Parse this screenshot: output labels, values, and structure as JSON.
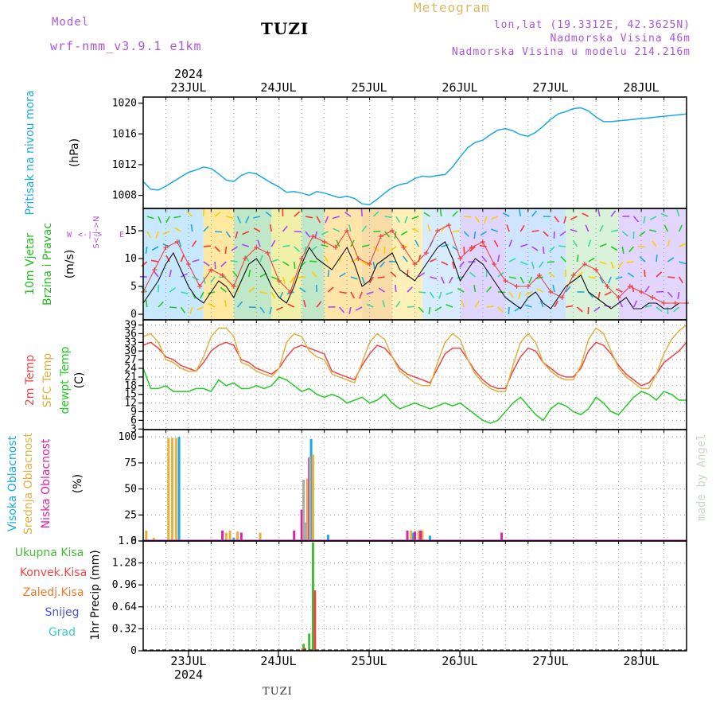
{
  "header": {
    "model_label": "Model",
    "model_name": "wrf-nmm_v3.9.1 e1km",
    "station": "TUZI",
    "product": "Meteogram",
    "lonlat": "lon,lat (19.3312E, 42.3625N)",
    "elevation": "Nadmorska Visina 46m",
    "model_elevation": "Nadmorska Visina u modelu 214.216m",
    "footer_station": "TUZI",
    "watermark": "made by Angel"
  },
  "colors": {
    "pressure": "#19a9e6",
    "temp2m": "#ee4444",
    "sfc": "#e0b040",
    "dewpt": "#22cc22",
    "high_cloud": "#19a9e6",
    "mid_cloud": "#e6b040",
    "low_cloud": "#dd22aa",
    "total_precip": "#44bb33",
    "conv_precip": "#ee4444",
    "strat_precip": "#f07a2a",
    "snow": "#5050dd",
    "graupel": "#33cccc",
    "header_purple": "#aa55dd",
    "header_gold": "#e0b860"
  },
  "axis": {
    "year": "2024",
    "dates": [
      "23JUL",
      "24JUL",
      "25JUL",
      "26JUL",
      "27JUL",
      "28JUL"
    ]
  },
  "chart_data": [
    {
      "type": "line",
      "panel": "pressure",
      "labels": [
        "Pritisak na nivou mora",
        "(hPa)"
      ],
      "y_ticks": [
        1008,
        1012,
        1016,
        1020
      ],
      "ylim": [
        1006.3,
        1020.8
      ],
      "x_range_hours": [
        0,
        144
      ],
      "series": [
        {
          "color": "#19a9e6",
          "x": [
            0,
            2,
            4,
            6,
            8,
            10,
            12,
            14,
            16,
            18,
            20,
            22,
            24,
            26,
            28,
            30,
            32,
            34,
            36,
            38,
            40,
            42,
            44,
            46,
            48,
            50,
            52,
            54,
            56,
            58,
            60,
            62,
            64,
            66,
            68,
            70,
            72,
            74,
            76,
            78,
            80,
            82,
            84,
            86,
            88,
            90,
            92,
            94,
            96,
            98,
            100,
            102,
            104,
            106,
            108,
            110,
            112,
            114,
            116,
            118,
            120,
            122,
            124,
            126,
            128,
            130,
            132,
            134,
            136,
            138,
            140,
            142,
            144
          ],
          "y": [
            1009.8,
            1008.8,
            1008.7,
            1009.2,
            1009.8,
            1010.4,
            1011.0,
            1011.3,
            1011.7,
            1011.5,
            1010.8,
            1010.0,
            1009.8,
            1010.6,
            1011.0,
            1010.8,
            1010.2,
            1009.6,
            1009.1,
            1008.4,
            1008.5,
            1008.3,
            1008.0,
            1008.5,
            1008.3,
            1008.0,
            1007.7,
            1007.9,
            1007.6,
            1006.9,
            1006.8,
            1007.5,
            1008.3,
            1009.0,
            1009.4,
            1009.6,
            1010.2,
            1010.5,
            1010.4,
            1010.6,
            1010.7,
            1011.7,
            1013.0,
            1014.2,
            1014.9,
            1015.2,
            1015.9,
            1016.5,
            1016.7,
            1016.4,
            1015.9,
            1015.7,
            1016.2,
            1017.0,
            1017.9,
            1018.6,
            1018.9,
            1019.3,
            1019.4,
            1019.0,
            1018.2,
            1017.6,
            1017.6,
            1017.7,
            1017.8,
            1017.9,
            1018.0,
            1018.1,
            1018.2,
            1018.3,
            1018.4,
            1018.5,
            1018.6
          ]
        }
      ]
    },
    {
      "type": "line",
      "panel": "wind",
      "labels": [
        "10m Vjetar",
        "Brzina i Pravac",
        "(m/s)"
      ],
      "y_ticks": [
        0,
        5,
        10,
        15
      ],
      "ylim": [
        -1,
        19
      ],
      "x_range_hours": [
        0,
        144
      ],
      "compass": [
        "W",
        "E",
        "N",
        "S"
      ],
      "series": [
        {
          "name": "wind speed",
          "color": "#111111",
          "x": [
            0,
            2,
            4,
            6,
            8,
            10,
            12,
            14,
            16,
            18,
            20,
            22,
            24,
            26,
            28,
            30,
            32,
            34,
            36,
            38,
            40,
            42,
            44,
            46,
            48,
            50,
            52,
            54,
            56,
            58,
            60,
            62,
            64,
            66,
            68,
            70,
            72,
            74,
            76,
            78,
            80,
            82,
            84,
            86,
            88,
            90,
            92,
            94,
            96,
            98,
            100,
            102,
            104,
            106,
            108,
            110,
            112,
            114,
            116,
            118,
            120,
            122,
            124,
            126,
            128,
            130,
            132,
            134,
            136,
            138,
            140,
            142,
            144
          ],
          "y": [
            2,
            4,
            6,
            9,
            11,
            8,
            5,
            3,
            2,
            4,
            6,
            5,
            3,
            6,
            9,
            10,
            8,
            5,
            3,
            2,
            5,
            9,
            12,
            10,
            9,
            8,
            10,
            12,
            9,
            5,
            6,
            9,
            10,
            11,
            8,
            7,
            6,
            8,
            10,
            12,
            13,
            10,
            6,
            8,
            10,
            9,
            7,
            5,
            3,
            2,
            1,
            3,
            4,
            2,
            1,
            3,
            5,
            6,
            7,
            4,
            3,
            2,
            1,
            2,
            3,
            1,
            1,
            2,
            2,
            1,
            1,
            2,
            2
          ]
        },
        {
          "name": "gust",
          "color": "#ee4444",
          "x": [
            0,
            3,
            6,
            9,
            12,
            15,
            18,
            21,
            24,
            27,
            30,
            33,
            36,
            39,
            42,
            45,
            48,
            51,
            54,
            57,
            60,
            63,
            66,
            69,
            72,
            75,
            78,
            81,
            84,
            87,
            90,
            93,
            96,
            99,
            102,
            105,
            108,
            111,
            114,
            117,
            120,
            123,
            126,
            129,
            132,
            135,
            138,
            141,
            144
          ],
          "y": [
            4,
            8,
            12,
            13,
            9,
            5,
            8,
            7,
            5,
            10,
            12,
            11,
            6,
            4,
            10,
            14,
            13,
            12,
            15,
            10,
            9,
            14,
            15,
            12,
            9,
            11,
            15,
            16,
            10,
            12,
            13,
            9,
            6,
            5,
            5,
            7,
            4,
            3,
            7,
            9,
            8,
            5,
            3,
            5,
            4,
            3,
            2,
            2,
            2
          ]
        }
      ]
    },
    {
      "type": "line",
      "panel": "temperature",
      "labels": [
        "2m Temp",
        "SFC Temp",
        "dewpt Temp",
        "(C)"
      ],
      "y_ticks": [
        3,
        6,
        9,
        12,
        15,
        18,
        21,
        24,
        27,
        30,
        33,
        36,
        39
      ],
      "ylim": [
        2.8,
        40.8
      ],
      "x_range_hours": [
        0,
        144
      ],
      "series": [
        {
          "name": "2m Temp",
          "color": "#ee4444",
          "x": [
            0,
            2,
            4,
            6,
            8,
            10,
            12,
            14,
            16,
            18,
            20,
            22,
            24,
            26,
            28,
            30,
            32,
            34,
            36,
            38,
            40,
            42,
            44,
            46,
            48,
            50,
            52,
            54,
            56,
            58,
            60,
            62,
            64,
            66,
            68,
            70,
            72,
            74,
            76,
            78,
            80,
            82,
            84,
            86,
            88,
            90,
            92,
            94,
            96,
            98,
            100,
            102,
            104,
            106,
            108,
            110,
            112,
            114,
            116,
            118,
            120,
            122,
            124,
            126,
            128,
            130,
            132,
            134,
            136,
            138,
            140,
            142,
            144
          ],
          "y": [
            32,
            33,
            31,
            28,
            27,
            25,
            24,
            23,
            26,
            30,
            32,
            33,
            32,
            27,
            26,
            24,
            23,
            22,
            24,
            28,
            31,
            32,
            31,
            30,
            29,
            23,
            22,
            21,
            20,
            25,
            29,
            32,
            31,
            28,
            24,
            22,
            21,
            20,
            19,
            24,
            29,
            31,
            31,
            27,
            23,
            20,
            18,
            17,
            17,
            23,
            28,
            31,
            30,
            26,
            24,
            22,
            21,
            21,
            24,
            30,
            33,
            32,
            29,
            25,
            22,
            20,
            18,
            19,
            22,
            26,
            28,
            30,
            33
          ]
        },
        {
          "name": "SFC Temp",
          "color": "#e0b040",
          "x": [
            0,
            2,
            4,
            6,
            8,
            10,
            12,
            14,
            16,
            18,
            20,
            22,
            24,
            26,
            28,
            30,
            32,
            34,
            36,
            38,
            40,
            42,
            44,
            46,
            48,
            50,
            52,
            54,
            56,
            58,
            60,
            62,
            64,
            66,
            68,
            70,
            72,
            74,
            76,
            78,
            80,
            82,
            84,
            86,
            88,
            90,
            92,
            94,
            96,
            98,
            100,
            102,
            104,
            106,
            108,
            110,
            112,
            114,
            116,
            118,
            120,
            122,
            124,
            126,
            128,
            130,
            132,
            134,
            136,
            138,
            140,
            142,
            144
          ],
          "y": [
            35,
            36,
            33,
            27,
            26,
            24,
            23,
            23,
            28,
            35,
            38,
            38,
            35,
            26,
            25,
            23,
            22,
            21,
            24,
            33,
            36,
            35,
            30,
            28,
            27,
            22,
            21,
            20,
            19,
            26,
            33,
            36,
            34,
            28,
            23,
            21,
            19,
            18,
            18,
            26,
            33,
            36,
            34,
            27,
            22,
            19,
            17,
            16,
            16,
            25,
            33,
            36,
            33,
            26,
            23,
            21,
            20,
            20,
            25,
            34,
            38,
            36,
            30,
            24,
            21,
            19,
            17,
            17,
            22,
            29,
            34,
            37,
            39
          ]
        },
        {
          "name": "dewpt Temp",
          "color": "#22cc22",
          "x": [
            0,
            2,
            4,
            6,
            8,
            10,
            12,
            14,
            16,
            18,
            20,
            22,
            24,
            26,
            28,
            30,
            32,
            34,
            36,
            38,
            40,
            42,
            44,
            46,
            48,
            50,
            52,
            54,
            56,
            58,
            60,
            62,
            64,
            66,
            68,
            70,
            72,
            74,
            76,
            78,
            80,
            82,
            84,
            86,
            88,
            90,
            92,
            94,
            96,
            98,
            100,
            102,
            104,
            106,
            108,
            110,
            112,
            114,
            116,
            118,
            120,
            122,
            124,
            126,
            128,
            130,
            132,
            134,
            136,
            138,
            140,
            142,
            144
          ],
          "y": [
            24,
            17,
            17,
            18,
            16,
            16,
            16,
            17,
            17,
            16,
            20,
            18,
            19,
            17,
            17,
            18,
            17,
            18,
            21,
            20,
            18,
            16,
            17,
            15,
            14,
            15,
            14,
            12,
            13,
            14,
            12,
            13,
            15,
            12,
            10,
            11,
            12,
            11,
            10,
            11,
            12,
            11,
            12,
            10,
            8,
            6,
            5,
            6,
            9,
            12,
            14,
            11,
            8,
            6,
            10,
            12,
            11,
            9,
            8,
            10,
            14,
            12,
            9,
            8,
            11,
            14,
            16,
            15,
            13,
            16,
            15,
            13,
            13
          ]
        }
      ]
    },
    {
      "type": "bar",
      "panel": "clouds",
      "labels": [
        "Visoka Oblacnost",
        "Srednja Oblacnost",
        "Niska Oblacnost",
        "(%)"
      ],
      "y_ticks": [
        0,
        25,
        50,
        75,
        100
      ],
      "ylim": [
        0,
        107
      ],
      "x_range_hours": [
        0,
        144
      ],
      "series": [
        {
          "name": "Visoka Oblacnost",
          "color": "#19a9e6",
          "x": [
            9.5,
            24,
            44.5,
            49,
            71.5,
            76
          ],
          "y": [
            100,
            3,
            98,
            6,
            8,
            5
          ]
        },
        {
          "name": "Srednja Oblacnost",
          "color": "#e6b040",
          "x": [
            0.8,
            2.8,
            6.7,
            7.7,
            8.7,
            22,
            23,
            25,
            31,
            43.5,
            45,
            71,
            73,
            74
          ],
          "y": [
            10,
            3,
            99,
            99,
            99,
            8,
            10,
            9,
            8,
            60,
            83,
            10,
            10,
            10
          ]
        },
        {
          "name": "Niska Oblacnost",
          "color": "#dd22aa",
          "x": [
            21,
            26,
            40,
            42,
            44,
            70,
            72,
            73.5,
            95
          ],
          "y": [
            10,
            8,
            10,
            30,
            80,
            10,
            9,
            10,
            8
          ]
        },
        {
          "name": "grey",
          "color": "#aaaaaa",
          "x": [
            42.5,
            43,
            44.2
          ],
          "y": [
            59,
            18,
            81
          ]
        }
      ]
    },
    {
      "type": "bar",
      "panel": "precipitation",
      "labels": [
        "Ukupna Kisa",
        "Konvek.Kisa",
        "Zaledj.Kisa",
        "Snijeg",
        "Grad",
        "1hr Precip (mm)"
      ],
      "y_ticks": [
        0,
        0.32,
        0.64,
        0.96,
        1.28,
        1.6
      ],
      "y_tick_labels": [
        "0",
        "0.32",
        "0.64",
        "0.96",
        "1.28",
        "1.6"
      ],
      "ylim": [
        0,
        1.6
      ],
      "x_range_hours": [
        0,
        144
      ],
      "series": [
        {
          "name": "Ukupna Kisa",
          "color": "#44bb33",
          "x": [
            42.5,
            44,
            45
          ],
          "y": [
            0.1,
            0.25,
            1.58
          ]
        },
        {
          "name": "Konvek.Kisa",
          "color": "#ee4444",
          "x": [
            42.9,
            45.5
          ],
          "y": [
            0.04,
            0.88
          ]
        },
        {
          "name": "Zaledj.Kisa",
          "color": "#f07a2a",
          "x": [
            42.2
          ],
          "y": [
            0.03
          ]
        }
      ]
    }
  ]
}
